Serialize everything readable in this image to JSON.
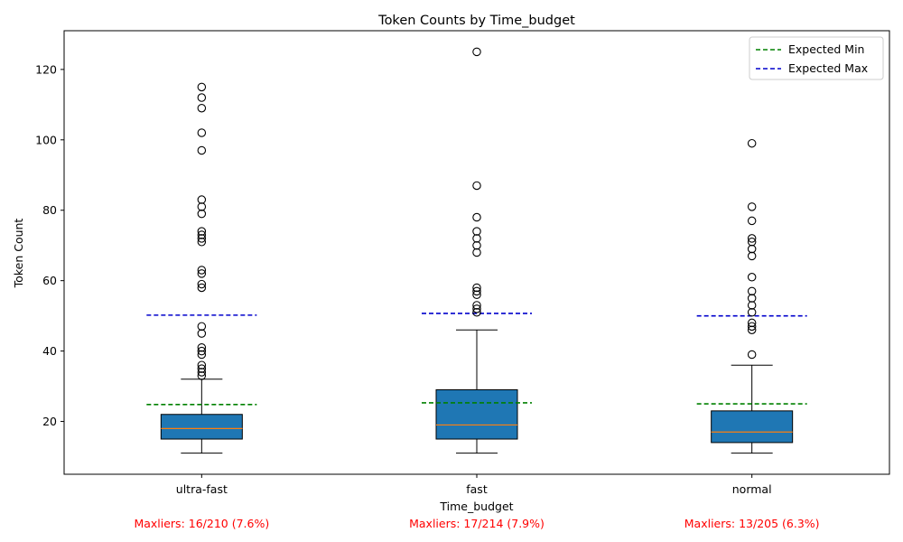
{
  "chart_data": {
    "type": "box",
    "title": "Token Counts by Time_budget",
    "xlabel": "Time_budget",
    "ylabel": "Token Count",
    "ylim": [
      5,
      131
    ],
    "yticks": [
      20,
      40,
      60,
      80,
      100,
      120
    ],
    "grid": false,
    "legend_position": "top-right",
    "colors": {
      "box_fill": "#1f77b4",
      "median": "#ff7f0e",
      "expected_min": "#008000",
      "expected_max": "#0000cc",
      "annotation": "#ff0000"
    },
    "legend": [
      {
        "label": "Expected Min",
        "color": "#008000"
      },
      {
        "label": "Expected Max",
        "color": "#0000cc"
      }
    ],
    "categories": [
      "ultra-fast",
      "fast",
      "normal"
    ],
    "boxes": [
      {
        "category": "ultra-fast",
        "whisker_low": 11,
        "q1": 15,
        "median": 18,
        "q3": 22,
        "whisker_high": 32,
        "expected_min": 24.8,
        "expected_max": 50.2,
        "outliers": [
          33,
          34,
          35,
          36,
          39,
          40,
          41,
          45,
          47,
          58,
          59,
          62,
          63,
          71,
          72,
          73,
          74,
          79,
          81,
          83,
          97,
          102,
          109,
          112,
          115
        ]
      },
      {
        "category": "fast",
        "whisker_low": 11,
        "q1": 15,
        "median": 19,
        "q3": 29,
        "whisker_high": 46,
        "expected_min": 25.3,
        "expected_max": 50.7,
        "outliers": [
          51,
          52,
          53,
          56,
          57,
          58,
          68,
          70,
          72,
          74,
          78,
          87,
          125
        ]
      },
      {
        "category": "normal",
        "whisker_low": 11,
        "q1": 14,
        "median": 17,
        "q3": 23,
        "whisker_high": 36,
        "expected_min": 25.0,
        "expected_max": 50.0,
        "outliers": [
          39,
          46,
          47,
          48,
          51,
          53,
          55,
          57,
          61,
          67,
          69,
          71,
          72,
          77,
          81,
          99
        ]
      }
    ],
    "annotations": [
      "Maxliers: 16/210 (7.6%)",
      "Maxliers: 17/214 (7.9%)",
      "Maxliers: 13/205 (6.3%)"
    ]
  }
}
